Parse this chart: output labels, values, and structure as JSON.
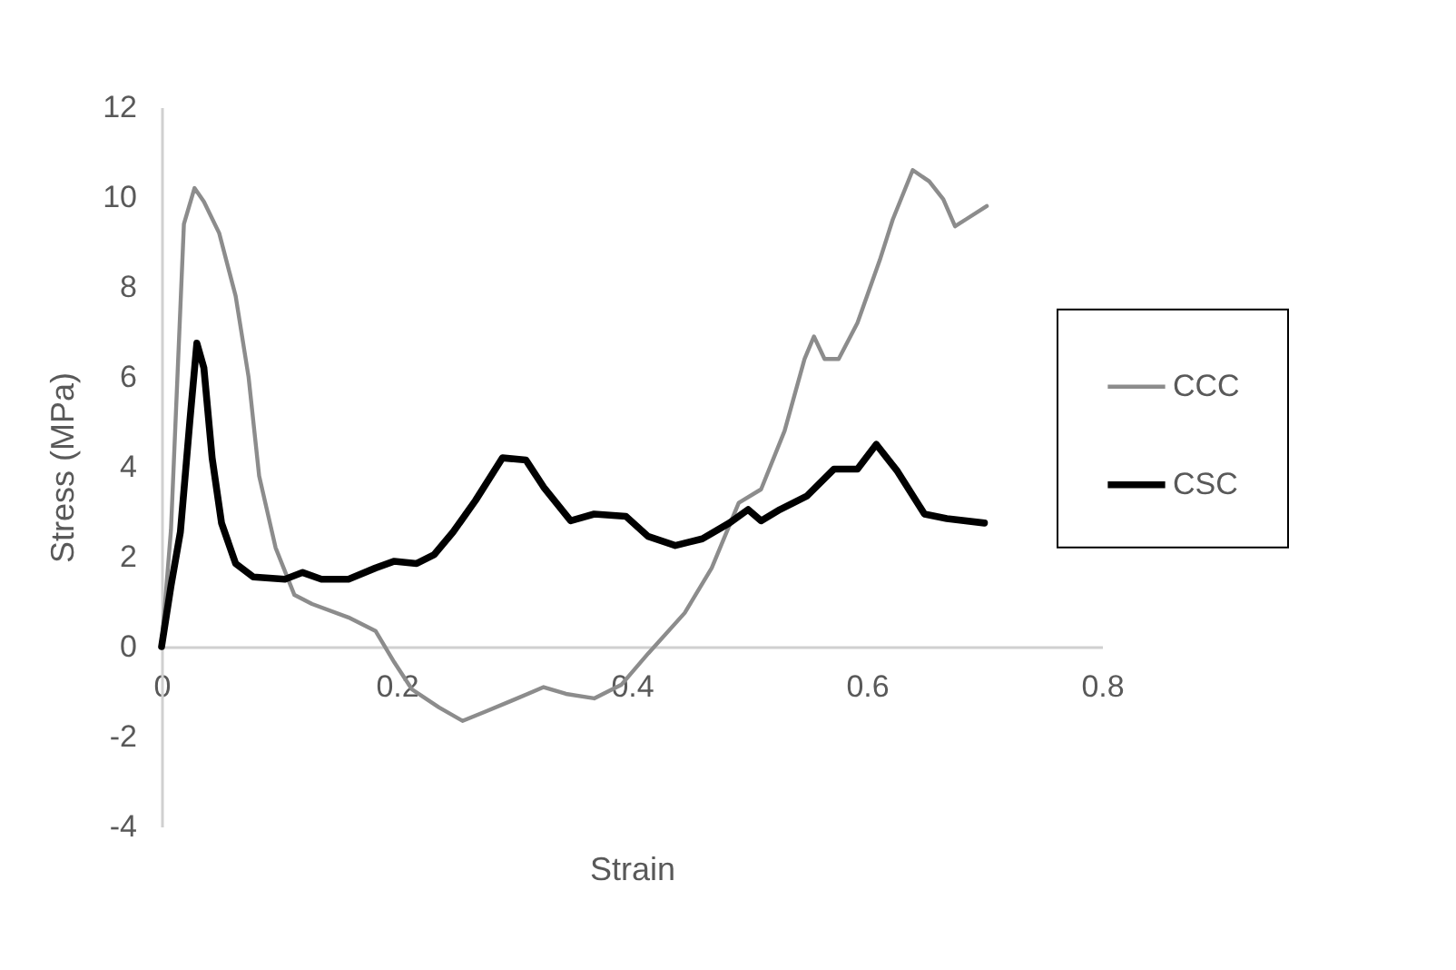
{
  "chart_data": {
    "type": "line",
    "xlabel": "Strain",
    "ylabel": "Stress (MPa)",
    "xlim": [
      0,
      0.8
    ],
    "xticks": [
      0,
      0.2,
      0.4,
      0.6,
      0.8
    ],
    "ylim": [
      -4,
      12
    ],
    "yticks": [
      -4,
      -2,
      0,
      2,
      4,
      6,
      8,
      10,
      12
    ],
    "legend": "right",
    "series": [
      {
        "name": "CCC",
        "color": "#8c8c8c",
        "x": [
          0,
          0.008,
          0.019,
          0.028,
          0.036,
          0.049,
          0.063,
          0.074,
          0.083,
          0.097,
          0.113,
          0.128,
          0.159,
          0.182,
          0.198,
          0.213,
          0.236,
          0.256,
          0.275,
          0.298,
          0.325,
          0.344,
          0.368,
          0.391,
          0.414,
          0.445,
          0.468,
          0.491,
          0.51,
          0.53,
          0.547,
          0.555,
          0.564,
          0.576,
          0.592,
          0.611,
          0.622,
          0.639,
          0.653,
          0.665,
          0.675,
          0.684,
          0.702
        ],
        "values": [
          0,
          2.6,
          9.4,
          10.2,
          9.9,
          9.2,
          7.8,
          6.0,
          3.8,
          2.2,
          1.15,
          0.95,
          0.65,
          0.35,
          -0.35,
          -0.95,
          -1.35,
          -1.65,
          -1.45,
          -1.2,
          -0.9,
          -1.05,
          -1.15,
          -0.85,
          -0.15,
          0.75,
          1.75,
          3.2,
          3.5,
          4.8,
          6.4,
          6.9,
          6.4,
          6.4,
          7.2,
          8.6,
          9.5,
          10.6,
          10.35,
          9.95,
          9.35,
          9.5,
          9.8
        ]
      },
      {
        "name": "CSC",
        "color": "#000000",
        "x": [
          0,
          0.008,
          0.016,
          0.024,
          0.03,
          0.036,
          0.043,
          0.051,
          0.063,
          0.078,
          0.105,
          0.12,
          0.136,
          0.159,
          0.182,
          0.198,
          0.217,
          0.232,
          0.248,
          0.267,
          0.29,
          0.31,
          0.325,
          0.348,
          0.368,
          0.395,
          0.414,
          0.437,
          0.46,
          0.483,
          0.499,
          0.51,
          0.526,
          0.549,
          0.572,
          0.592,
          0.608,
          0.626,
          0.649,
          0.668,
          0.7
        ],
        "values": [
          0,
          1.35,
          2.55,
          5.0,
          6.75,
          6.2,
          4.2,
          2.75,
          1.85,
          1.55,
          1.5,
          1.65,
          1.5,
          1.5,
          1.75,
          1.9,
          1.85,
          2.05,
          2.55,
          3.25,
          4.2,
          4.15,
          3.55,
          2.8,
          2.95,
          2.9,
          2.45,
          2.25,
          2.4,
          2.75,
          3.05,
          2.8,
          3.05,
          3.35,
          3.95,
          3.95,
          4.5,
          3.9,
          2.95,
          2.85,
          2.75
        ]
      }
    ]
  }
}
